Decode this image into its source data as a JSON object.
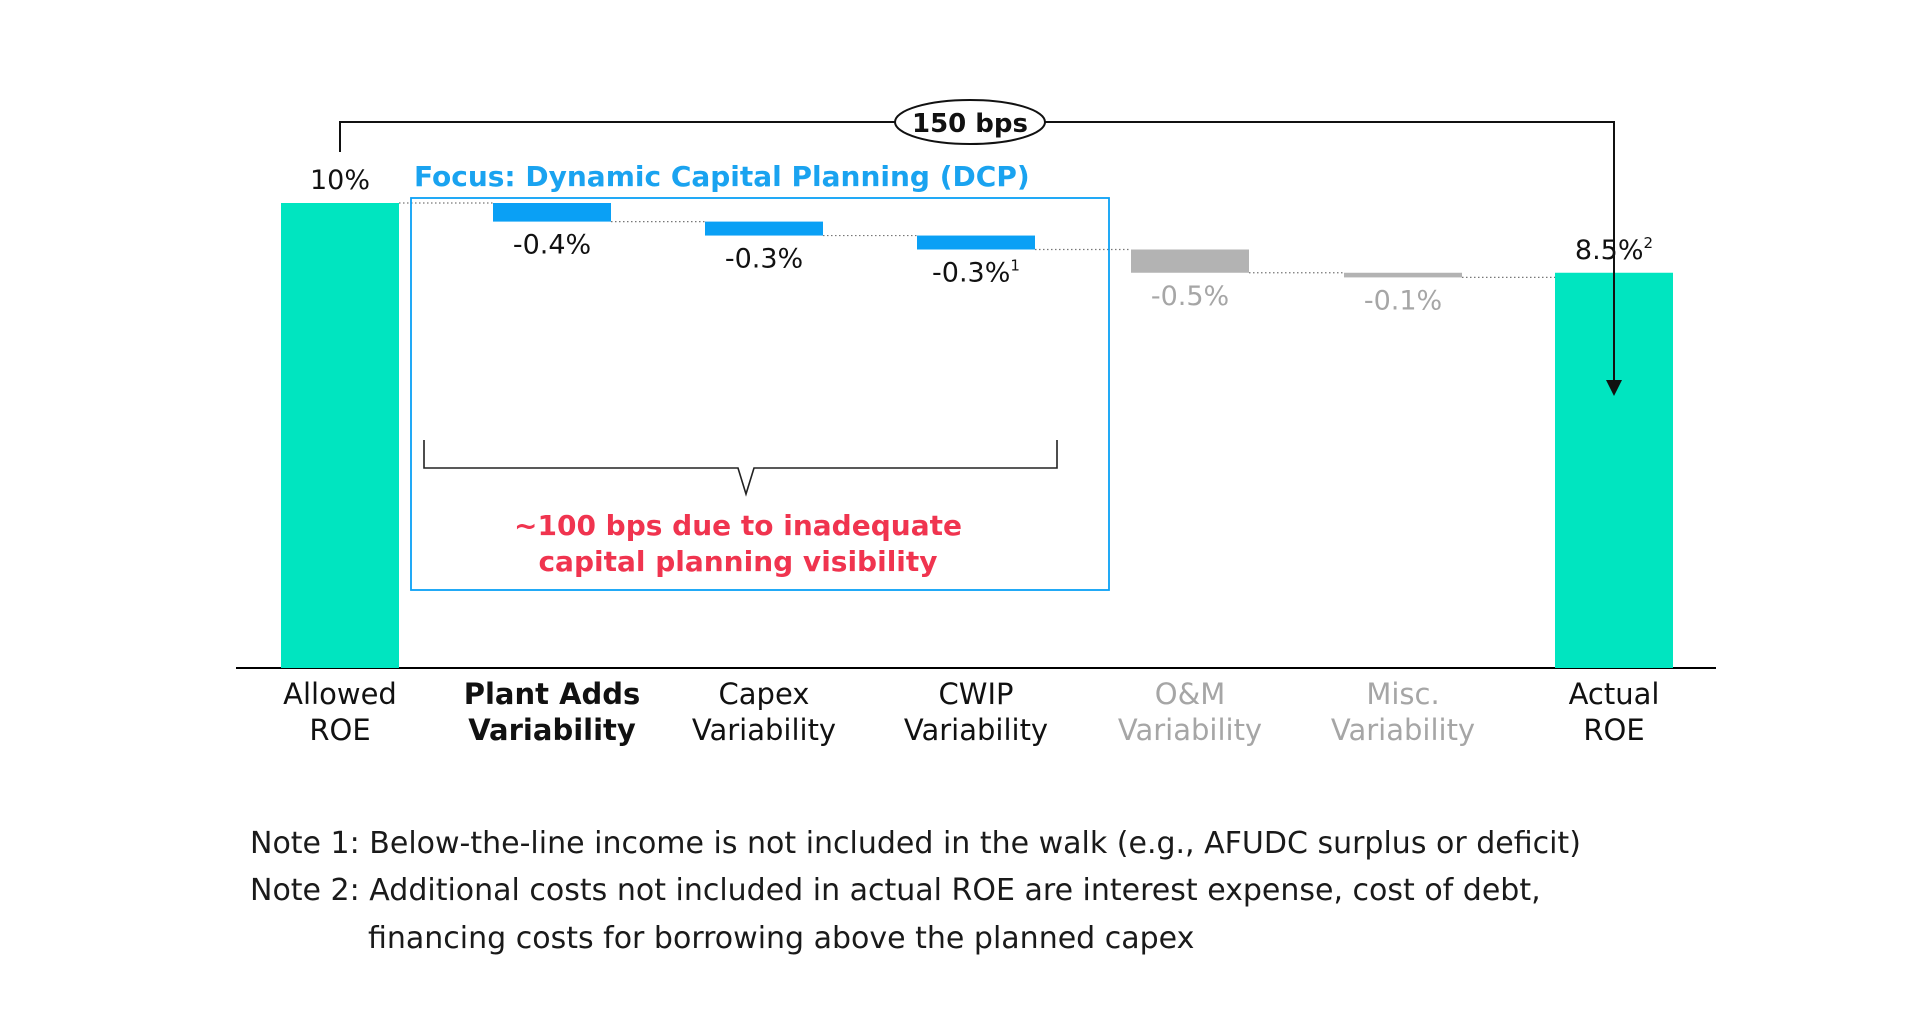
{
  "chart_data": {
    "type": "bar",
    "subtype": "waterfall",
    "categories": [
      [
        "Allowed",
        "ROE"
      ],
      [
        "Plant Adds",
        "Variability"
      ],
      [
        "Capex",
        "Variability"
      ],
      [
        "CWIP",
        "Variability"
      ],
      [
        "O&M",
        "Variability"
      ],
      [
        "Misc.",
        "Variability"
      ],
      [
        "Actual",
        "ROE"
      ]
    ],
    "values": [
      10,
      -0.4,
      -0.3,
      -0.3,
      -0.5,
      -0.1,
      8.5
    ],
    "bar_kinds": [
      "total",
      "delta",
      "delta",
      "delta",
      "delta",
      "delta",
      "total"
    ],
    "value_labels": [
      "10%",
      "-0.4%",
      "-0.3%",
      "-0.3%",
      "-0.5%",
      "-0.1%",
      "8.5%"
    ],
    "label_superscripts": [
      "",
      "",
      "",
      "1",
      "",
      "",
      "2"
    ],
    "emphasis": [
      "normal",
      "bold",
      "normal",
      "normal",
      "muted",
      "muted",
      "normal"
    ],
    "ylim": [
      0,
      10
    ],
    "grid": false,
    "colors": {
      "total": "#00e5c0",
      "focus": "#0aa0f5",
      "other": "#b3b3b3",
      "axis": "#000000",
      "muted_text": "#a6a6a6",
      "focus_title": "#1aa3f0",
      "annotation": "#f0344f"
    },
    "annotations": {
      "bps_bubble": "150 bps",
      "focus_title": "Focus: Dynamic Capital Planning (DCP)",
      "brace_line1": "~100 bps due to inadequate",
      "brace_line2": "capital planning visibility"
    }
  },
  "notes": {
    "note1": "Note 1: Below-the-line income is not included in the walk (e.g., AFUDC surplus or deficit)",
    "note2": "Note 2: Additional costs not included in actual ROE are interest expense, cost of debt,",
    "note2_cont": "financing costs for borrowing above the planned capex"
  }
}
